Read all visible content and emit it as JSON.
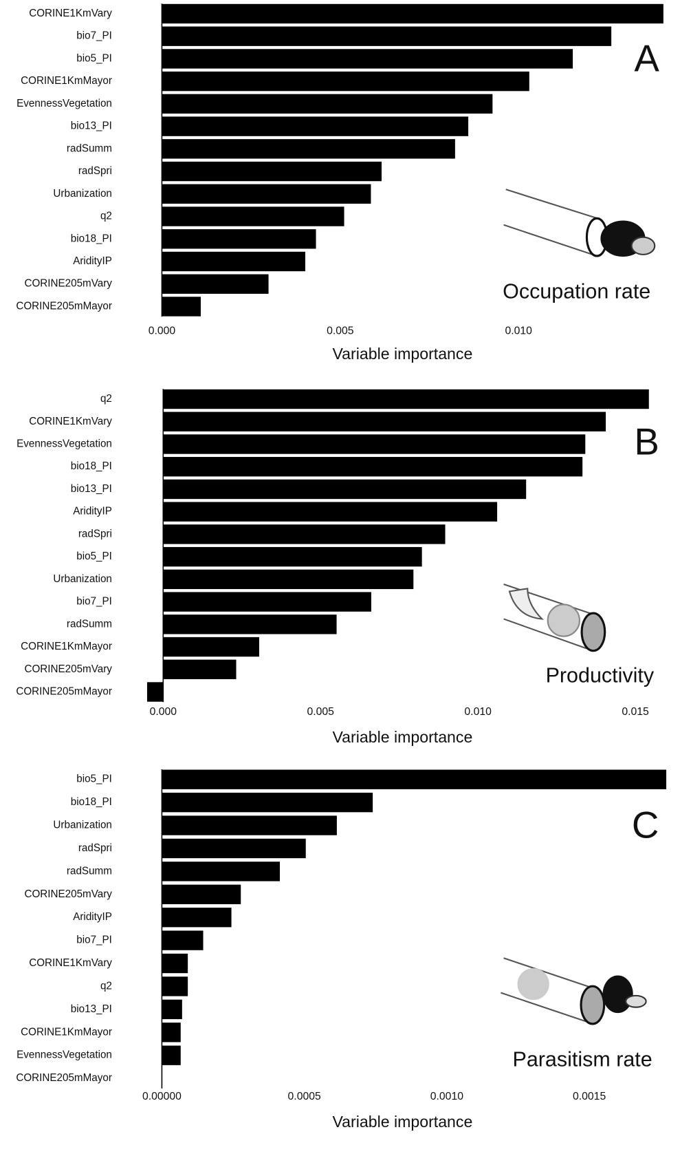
{
  "chart_data": [
    {
      "type": "bar",
      "orientation": "horizontal",
      "color": "#000000",
      "panel": "A",
      "annotation": "Occupation rate",
      "categories": [
        "CORINE1KmVary",
        "bio7_PI",
        "bio5_PI",
        "CORINE1KmMayor",
        "EvennessVegetation",
        "bio13_PI",
        "radSumm",
        "radSpri",
        "Urbanization",
        "q2",
        "bio18_PI",
        "AridityIP",
        "CORINE205mVary",
        "CORINE205mMayor"
      ],
      "values": [
        0.01406,
        0.0126,
        0.01152,
        0.0103,
        0.00927,
        0.00859,
        0.00822,
        0.00616,
        0.00586,
        0.00511,
        0.00432,
        0.00402,
        0.00299,
        0.00109
      ],
      "xlim": [
        0,
        0.0141
      ],
      "xticks": [
        {
          "value": 0,
          "label": "0.000"
        },
        0.005,
        {
          "value": 0.01,
          "label": "0.010"
        }
      ],
      "xlabel": "Variable importance"
    },
    {
      "type": "bar",
      "orientation": "horizontal",
      "color": "#000000",
      "panel": "B",
      "annotation": "Productivity",
      "categories": [
        "q2",
        "CORINE1KmVary",
        "EvennessVegetation",
        "bio18_PI",
        "bio13_PI",
        "AridityIP",
        "radSpri",
        "bio5_PI",
        "Urbanization",
        "bio7_PI",
        "radSumm",
        "CORINE1KmMayor",
        "CORINE205mVary",
        "CORINE205mMayor"
      ],
      "values": [
        0.01543,
        0.01406,
        0.01341,
        0.01332,
        0.01153,
        0.01061,
        0.00896,
        0.00822,
        0.00795,
        0.00661,
        0.00551,
        0.00305,
        0.00232,
        -0.00051
      ],
      "xlim": [
        -0.0005,
        0.0155
      ],
      "xticks": [
        {
          "value": 0,
          "label": "0.000"
        },
        0.005,
        {
          "value": 0.01,
          "label": "0.010"
        },
        0.015
      ],
      "xlabel": "Variable importance"
    },
    {
      "type": "bar",
      "orientation": "horizontal",
      "color": "#000000",
      "panel": "C",
      "annotation": "Parasitism rate",
      "categories": [
        "bio5_PI",
        "bio18_PI",
        "Urbanization",
        "radSpri",
        "radSumm",
        "CORINE205mVary",
        "AridityIP",
        "bio7_PI",
        "CORINE1KmVary",
        "q2",
        "bio13_PI",
        "CORINE1KmMayor",
        "EvennessVegetation",
        "CORINE205mMayor"
      ],
      "values": [
        0.00177,
        0.00074,
        0.000614,
        0.000505,
        0.000414,
        0.000277,
        0.000244,
        0.000145,
        9.1e-05,
        9.1e-05,
        7.1e-05,
        6.6e-05,
        6.6e-05,
        0
      ],
      "xlim": [
        0,
        0.00177
      ],
      "xticks": [
        {
          "value": 0,
          "label": "0.00000"
        },
        0.0005,
        {
          "value": 0.001,
          "label": "0.0010"
        },
        0.0015
      ],
      "xlabel": "Variable importance"
    }
  ]
}
